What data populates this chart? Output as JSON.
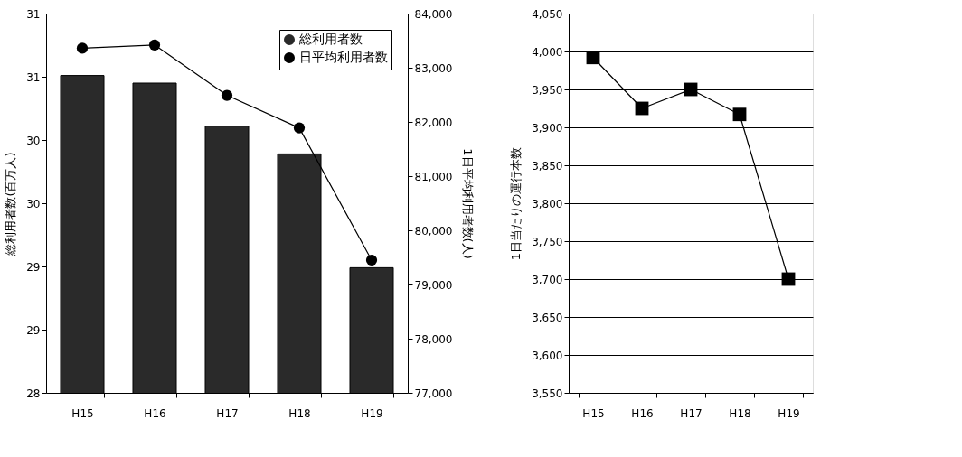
{
  "chart_data": [
    {
      "type": "bar",
      "categories": [
        "H15",
        "H16",
        "H17",
        "H18",
        "H19"
      ],
      "ylabel": "総利用者数(百万人)",
      "y2label": "1日平均利用者数(人)",
      "series": [
        {
          "name": "総利用者数",
          "type": "bar",
          "color": "#2a2a2a",
          "values": [
            30.51,
            30.45,
            30.11,
            29.89,
            28.99
          ]
        },
        {
          "name": "日平均利用者数",
          "type": "line",
          "axis": "y2",
          "color": "#000000",
          "marker": "circle",
          "values": [
            83360,
            83420,
            82490,
            81890,
            79450
          ]
        }
      ],
      "ylim": [
        28,
        31
      ],
      "yticks": [
        28,
        {
          "value": 28.5,
          "label": "29"
        },
        29,
        {
          "value": 29.5,
          "label": "30"
        },
        30,
        {
          "value": 30.5,
          "label": "31"
        },
        31
      ],
      "y2lim": [
        77000,
        84000
      ],
      "y2ticks": [
        {
          "value": 77000,
          "label": "77,000"
        },
        {
          "value": 78000,
          "label": "78,000"
        },
        {
          "value": 79000,
          "label": "79,000"
        },
        {
          "value": 80000,
          "label": "80,000"
        },
        {
          "value": 81000,
          "label": "81,000"
        },
        {
          "value": 82000,
          "label": "82,000"
        },
        {
          "value": 83000,
          "label": "83,000"
        },
        {
          "value": 84000,
          "label": "84,000"
        }
      ],
      "legend": "top right",
      "grid": false
    },
    {
      "type": "line",
      "categories": [
        "H15",
        "H16",
        "H17",
        "H18",
        "H19"
      ],
      "ylabel": "1日当たりの運行本数",
      "series": [
        {
          "color": "#000000",
          "marker": "square",
          "values": [
            3992,
            3925,
            3950,
            3917,
            3700
          ]
        }
      ],
      "ylim": [
        3550,
        4050
      ],
      "yticks": [
        {
          "value": 3550,
          "label": "3,550"
        },
        {
          "value": 3600,
          "label": "3,600"
        },
        {
          "value": 3650,
          "label": "3,650"
        },
        {
          "value": 3700,
          "label": "3,700"
        },
        {
          "value": 3750,
          "label": "3,750"
        },
        {
          "value": 3800,
          "label": "3,800"
        },
        {
          "value": 3850,
          "label": "3,850"
        },
        {
          "value": 3900,
          "label": "3,900"
        },
        {
          "value": 3950,
          "label": "3,950"
        },
        {
          "value": 4000,
          "label": "4,000"
        },
        {
          "value": 4050,
          "label": "4,050"
        }
      ],
      "grid": "y"
    }
  ]
}
